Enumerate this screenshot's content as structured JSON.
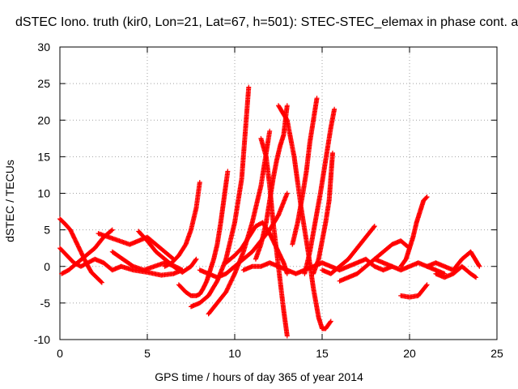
{
  "chart_data": {
    "type": "scatter",
    "title": "dSTEC Iono. truth (kir0, Lon=21, Lat=67, h=501): STEC-STEC_elemax in phase cont. a",
    "xlabel": "GPS time / hours of day 365 of year 2014",
    "ylabel": "dSTEC  / TECUs",
    "xlim": [
      0,
      25
    ],
    "ylim": [
      -10,
      30
    ],
    "xticks": [
      "0",
      "5",
      "10",
      "15",
      "20",
      "25"
    ],
    "yticks": [
      "-10",
      "-5",
      "0",
      "5",
      "10",
      "15",
      "20",
      "25",
      "30"
    ],
    "grid": true,
    "marker": "+",
    "color": "#ff0000",
    "series": [
      {
        "x": [
          0.0,
          0.3,
          0.6,
          0.9,
          1.2,
          1.5,
          1.8,
          2.1,
          2.4
        ],
        "y": [
          6.5,
          5.8,
          5.0,
          3.5,
          2.0,
          0.5,
          -0.8,
          -1.5,
          -2.2
        ]
      },
      {
        "x": [
          0.0,
          0.4,
          0.8,
          1.2,
          1.6,
          2.0,
          2.5,
          3.0,
          3.5
        ],
        "y": [
          2.5,
          1.5,
          0.5,
          0.0,
          0.5,
          1.0,
          0.5,
          -0.5,
          0.0
        ]
      },
      {
        "x": [
          0.1,
          0.5,
          1.0,
          1.5,
          2.0,
          2.5,
          3.0
        ],
        "y": [
          -1.0,
          -0.5,
          0.5,
          1.5,
          2.5,
          4.0,
          5.0
        ]
      },
      {
        "x": [
          2.2,
          2.8,
          3.4,
          4.0,
          4.5,
          5.0,
          5.5,
          6.0,
          6.5
        ],
        "y": [
          4.5,
          4.0,
          3.5,
          3.0,
          3.5,
          4.0,
          3.0,
          2.0,
          1.0
        ]
      },
      {
        "x": [
          3.0,
          3.6,
          4.2,
          4.8,
          5.4,
          6.0,
          6.6,
          7.0
        ],
        "y": [
          2.0,
          1.0,
          0.0,
          -0.5,
          0.0,
          0.5,
          0.0,
          -0.5
        ]
      },
      {
        "x": [
          4.5,
          5.0,
          5.5,
          6.0,
          6.5,
          7.0,
          7.5,
          7.8
        ],
        "y": [
          4.8,
          3.5,
          2.0,
          1.0,
          0.0,
          -0.8,
          0.0,
          1.0
        ]
      },
      {
        "x": [
          3.5,
          4.2,
          5.0,
          5.8,
          6.5,
          7.0
        ],
        "y": [
          0.0,
          -0.5,
          -0.8,
          -1.2,
          -1.0,
          -0.5
        ]
      },
      {
        "x": [
          6.8,
          7.2,
          7.5,
          7.8,
          8.0,
          8.2,
          8.4,
          8.6,
          8.8,
          9.0,
          9.2,
          9.4,
          9.6
        ],
        "y": [
          -2.5,
          -3.5,
          -4.0,
          -4.0,
          -3.8,
          -3.0,
          -2.0,
          -0.5,
          1.0,
          3.0,
          6.0,
          9.5,
          13.0
        ]
      },
      {
        "x": [
          6.0,
          6.4,
          6.8,
          7.2,
          7.5,
          7.8,
          8.0
        ],
        "y": [
          0.0,
          0.5,
          1.5,
          3.0,
          5.0,
          8.0,
          11.5
        ]
      },
      {
        "x": [
          7.5,
          8.0,
          8.5,
          9.0,
          9.5,
          10.0,
          10.4,
          10.8
        ],
        "y": [
          -5.5,
          -5.0,
          -4.0,
          -2.0,
          1.0,
          6.0,
          12.0,
          24.5
        ]
      },
      {
        "x": [
          8.5,
          9.0,
          9.5,
          10.0,
          10.5,
          11.0,
          11.5,
          12.0
        ],
        "y": [
          -6.5,
          -5.0,
          -3.5,
          -1.0,
          2.0,
          6.0,
          11.0,
          18.5
        ]
      },
      {
        "x": [
          9.5,
          10.0,
          10.4,
          10.8,
          11.2,
          11.6,
          12.0,
          12.4,
          12.8,
          13.0
        ],
        "y": [
          0.5,
          1.5,
          2.5,
          4.0,
          5.5,
          6.0,
          4.5,
          2.5,
          0.5,
          -1.0
        ]
      },
      {
        "x": [
          8.0,
          8.5,
          9.0,
          9.5,
          10.0,
          10.5,
          11.0,
          11.5,
          12.0,
          12.5,
          13.0
        ],
        "y": [
          -0.5,
          -1.0,
          -1.5,
          -1.0,
          0.0,
          1.0,
          2.0,
          3.5,
          5.0,
          7.0,
          10.0
        ]
      },
      {
        "x": [
          11.2,
          11.5,
          11.8,
          12.0,
          12.2,
          12.4,
          12.6,
          12.8,
          13.0
        ],
        "y": [
          1.0,
          3.0,
          6.0,
          9.0,
          12.0,
          14.5,
          16.5,
          18.0,
          22.0
        ]
      },
      {
        "x": [
          11.5,
          11.8,
          12.0,
          12.2,
          12.4,
          12.6,
          12.8,
          13.0
        ],
        "y": [
          17.5,
          15.0,
          11.0,
          6.0,
          2.0,
          -2.0,
          -6.0,
          -9.5
        ]
      },
      {
        "x": [
          10.5,
          11.0,
          11.5,
          12.0,
          12.5,
          13.0,
          13.5,
          14.0,
          14.5,
          15.0
        ],
        "y": [
          -0.5,
          0.0,
          0.0,
          0.5,
          0.0,
          -0.5,
          -1.0,
          -0.5,
          0.0,
          0.5
        ]
      },
      {
        "x": [
          12.5,
          13.0,
          13.4,
          13.8,
          14.2,
          14.5,
          14.8,
          15.0,
          15.2,
          15.5
        ],
        "y": [
          22.0,
          20.0,
          15.0,
          8.0,
          2.0,
          -3.0,
          -7.0,
          -8.5,
          -8.5,
          -7.5
        ]
      },
      {
        "x": [
          13.3,
          13.6,
          13.9,
          14.1,
          14.3,
          14.5,
          14.7
        ],
        "y": [
          3.0,
          6.0,
          10.0,
          13.0,
          17.0,
          20.0,
          23.0
        ]
      },
      {
        "x": [
          14.0,
          14.3,
          14.6,
          14.9,
          15.1,
          15.3,
          15.5,
          15.7
        ],
        "y": [
          -1.0,
          2.0,
          6.0,
          10.0,
          13.0,
          16.0,
          19.0,
          21.5
        ]
      },
      {
        "x": [
          14.5,
          14.8,
          15.0,
          15.2,
          15.4,
          15.6
        ],
        "y": [
          -1.0,
          1.0,
          3.5,
          6.0,
          9.0,
          15.5
        ]
      },
      {
        "x": [
          15.0,
          15.5,
          16.0,
          16.5,
          17.0,
          17.5,
          18.0
        ],
        "y": [
          -0.5,
          -1.0,
          0.0,
          1.0,
          2.5,
          4.0,
          5.5
        ]
      },
      {
        "x": [
          15.0,
          15.5,
          16.0,
          16.5,
          17.0,
          17.5,
          18.0,
          18.5,
          19.0
        ],
        "y": [
          0.5,
          0.0,
          -0.5,
          0.0,
          0.5,
          1.0,
          0.0,
          -0.5,
          0.0
        ]
      },
      {
        "x": [
          16.0,
          16.5,
          17.0,
          17.5,
          18.0,
          18.5,
          19.0,
          19.5,
          20.0
        ],
        "y": [
          -2.0,
          -1.5,
          -1.0,
          0.0,
          1.0,
          2.0,
          3.0,
          3.5,
          2.5
        ]
      },
      {
        "x": [
          19.5,
          19.8,
          20.0,
          20.2,
          20.4,
          20.6,
          20.8,
          21.0
        ],
        "y": [
          0.0,
          1.0,
          2.5,
          4.0,
          6.0,
          7.5,
          9.0,
          9.5
        ]
      },
      {
        "x": [
          19.5,
          20.0,
          20.5,
          21.0
        ],
        "y": [
          -4.0,
          -4.2,
          -4.0,
          -2.5
        ]
      },
      {
        "x": [
          18.0,
          18.5,
          19.0,
          19.5,
          20.0,
          20.5,
          21.0,
          21.5,
          22.0
        ],
        "y": [
          1.0,
          0.5,
          0.0,
          -0.5,
          0.0,
          0.5,
          0.0,
          -0.5,
          -1.0
        ]
      },
      {
        "x": [
          21.0,
          21.5,
          22.0,
          22.5,
          23.0,
          23.5,
          24.0
        ],
        "y": [
          0.0,
          0.5,
          0.0,
          -0.5,
          1.0,
          2.0,
          0.0
        ]
      },
      {
        "x": [
          21.5,
          22.0,
          22.5,
          23.0,
          23.5,
          23.8
        ],
        "y": [
          -1.0,
          -1.5,
          -1.0,
          0.0,
          -1.0,
          -1.5
        ]
      }
    ]
  }
}
